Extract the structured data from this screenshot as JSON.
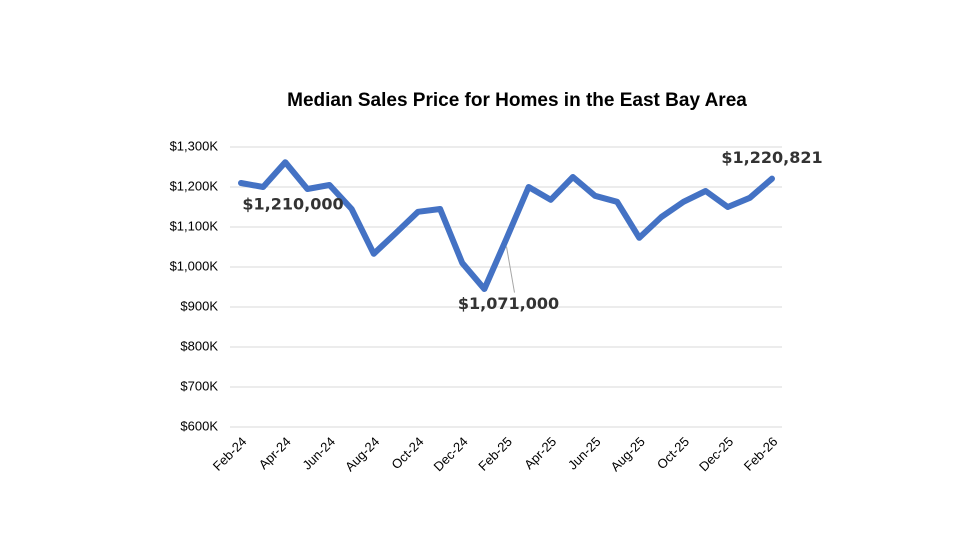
{
  "chart_data": {
    "type": "line",
    "title": "Median Sales Price for Homes in the East Bay Area",
    "categories": [
      "Feb-24",
      null,
      "Apr-24",
      null,
      "Jun-24",
      null,
      "Aug-24",
      null,
      "Oct-24",
      null,
      "Dec-24",
      null,
      "Feb-25",
      null,
      "Apr-25",
      null,
      "Jun-25",
      null,
      "Aug-25",
      null,
      "Oct-25",
      null,
      "Dec-25",
      null,
      "Feb-26"
    ],
    "series": [
      {
        "name": "Median Sales Price",
        "color": "#4472c4",
        "values": [
          1210,
          1200,
          1262,
          1195,
          1205,
          1145,
          1033,
          1085,
          1138,
          1145,
          1010,
          945,
          1071,
          1200,
          1168,
          1225,
          1178,
          1163,
          1073,
          1125,
          1163,
          1190,
          1150,
          1173,
          1220.821
        ],
        "value_labels": [
          "$1,210,000",
          null,
          null,
          null,
          null,
          null,
          null,
          null,
          null,
          null,
          null,
          null,
          "$1,071,000",
          null,
          null,
          null,
          null,
          null,
          null,
          null,
          null,
          null,
          null,
          null,
          "$1,220,821"
        ]
      }
    ],
    "ylim": [
      600,
      1300
    ],
    "yticks": [
      {
        "value": 600,
        "label": "$600K"
      },
      {
        "value": 700,
        "label": "$700K"
      },
      {
        "value": 800,
        "label": "$800K"
      },
      {
        "value": 900,
        "label": "$900K"
      },
      {
        "value": 1000,
        "label": "$1,000K"
      },
      {
        "value": 1100,
        "label": "$1,100K"
      },
      {
        "value": 1200,
        "label": "$1,200K"
      },
      {
        "value": 1300,
        "label": "$1,300K"
      }
    ],
    "grid": true
  }
}
